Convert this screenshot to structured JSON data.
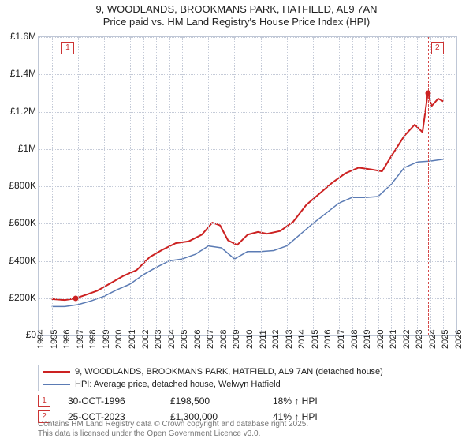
{
  "title_line1": "9, WOODLANDS, BROOKMANS PARK, HATFIELD, AL9 7AN",
  "title_line2": "Price paid vs. HM Land Registry's House Price Index (HPI)",
  "chart": {
    "type": "line",
    "background_color": "#ffffff",
    "grid_color": "#c5cbd8",
    "border_color": "#bfc7d6",
    "x_axis": {
      "min": 1994,
      "max": 2026,
      "ticks": [
        1994,
        1995,
        1996,
        1997,
        1998,
        1999,
        2000,
        2001,
        2002,
        2003,
        2004,
        2005,
        2006,
        2007,
        2008,
        2009,
        2010,
        2011,
        2012,
        2013,
        2014,
        2015,
        2016,
        2017,
        2018,
        2019,
        2020,
        2021,
        2022,
        2023,
        2024,
        2025,
        2026
      ]
    },
    "y_axis": {
      "min": 0,
      "max": 1600000,
      "tick_step": 200000,
      "tick_labels": [
        "£0",
        "£200K",
        "£400K",
        "£600K",
        "£800K",
        "£1M",
        "£1.2M",
        "£1.4M",
        "£1.6M"
      ]
    },
    "series": [
      {
        "name": "price_paid",
        "color": "#cc2222",
        "width": 2,
        "points": [
          [
            1995.0,
            195000
          ],
          [
            1996.0,
            190000
          ],
          [
            1996.8,
            198500
          ],
          [
            1997.5,
            215000
          ],
          [
            1998.5,
            240000
          ],
          [
            1999.5,
            280000
          ],
          [
            2000.5,
            320000
          ],
          [
            2001.5,
            350000
          ],
          [
            2002.5,
            420000
          ],
          [
            2003.5,
            460000
          ],
          [
            2004.5,
            495000
          ],
          [
            2005.5,
            505000
          ],
          [
            2006.5,
            540000
          ],
          [
            2007.3,
            605000
          ],
          [
            2007.9,
            590000
          ],
          [
            2008.5,
            510000
          ],
          [
            2009.2,
            485000
          ],
          [
            2010.0,
            540000
          ],
          [
            2010.8,
            555000
          ],
          [
            2011.5,
            545000
          ],
          [
            2012.5,
            560000
          ],
          [
            2013.5,
            610000
          ],
          [
            2014.5,
            700000
          ],
          [
            2015.5,
            760000
          ],
          [
            2016.5,
            820000
          ],
          [
            2017.5,
            870000
          ],
          [
            2018.5,
            900000
          ],
          [
            2019.5,
            890000
          ],
          [
            2020.3,
            880000
          ],
          [
            2021.0,
            960000
          ],
          [
            2022.0,
            1070000
          ],
          [
            2022.8,
            1130000
          ],
          [
            2023.4,
            1090000
          ],
          [
            2023.81,
            1300000
          ],
          [
            2024.1,
            1230000
          ],
          [
            2024.6,
            1270000
          ],
          [
            2025.0,
            1255000
          ]
        ]
      },
      {
        "name": "hpi",
        "color": "#5b7bb4",
        "width": 1.5,
        "points": [
          [
            1995.0,
            155000
          ],
          [
            1996.0,
            155000
          ],
          [
            1997.0,
            165000
          ],
          [
            1998.0,
            185000
          ],
          [
            1999.0,
            210000
          ],
          [
            2000.0,
            245000
          ],
          [
            2001.0,
            275000
          ],
          [
            2002.0,
            325000
          ],
          [
            2003.0,
            365000
          ],
          [
            2004.0,
            400000
          ],
          [
            2005.0,
            410000
          ],
          [
            2006.0,
            435000
          ],
          [
            2007.0,
            480000
          ],
          [
            2008.0,
            470000
          ],
          [
            2009.0,
            410000
          ],
          [
            2010.0,
            450000
          ],
          [
            2011.0,
            450000
          ],
          [
            2012.0,
            455000
          ],
          [
            2013.0,
            480000
          ],
          [
            2014.0,
            540000
          ],
          [
            2015.0,
            600000
          ],
          [
            2016.0,
            655000
          ],
          [
            2017.0,
            710000
          ],
          [
            2018.0,
            740000
          ],
          [
            2019.0,
            740000
          ],
          [
            2020.0,
            745000
          ],
          [
            2021.0,
            810000
          ],
          [
            2022.0,
            900000
          ],
          [
            2023.0,
            930000
          ],
          [
            2024.0,
            935000
          ],
          [
            2025.0,
            945000
          ]
        ]
      }
    ],
    "markers": [
      {
        "id": "1",
        "x": 1996.83,
        "y": 198500,
        "line_color": "#d44a4a"
      },
      {
        "id": "2",
        "x": 2023.81,
        "y": 1300000,
        "line_color": "#d44a4a"
      }
    ]
  },
  "legend": {
    "items": [
      {
        "color": "#cc2222",
        "width": 2,
        "text": "9, WOODLANDS, BROOKMANS PARK, HATFIELD, AL9 7AN (detached house)"
      },
      {
        "color": "#5b7bb4",
        "width": 1.5,
        "text": "HPI: Average price, detached house, Welwyn Hatfield"
      }
    ]
  },
  "annotations": [
    {
      "id": "1",
      "date": "30-OCT-1996",
      "price": "£198,500",
      "rel": "18% ↑ HPI"
    },
    {
      "id": "2",
      "date": "25-OCT-2023",
      "price": "£1,300,000",
      "rel": "41% ↑ HPI"
    }
  ],
  "copyright_line1": "Contains HM Land Registry data © Crown copyright and database right 2025.",
  "copyright_line2": "This data is licensed under the Open Government Licence v3.0."
}
